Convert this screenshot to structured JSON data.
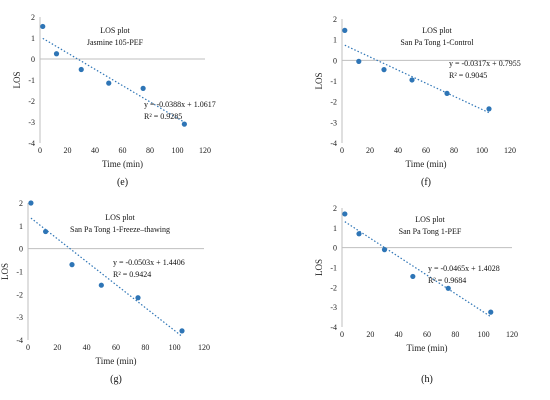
{
  "chart_data": [
    {
      "type": "scatter",
      "panel_label": "(e)",
      "title": "LOS plot",
      "subtitle": "Jasmine 105-PEF",
      "xlabel": "Time (min)",
      "ylabel": "LOS",
      "xlim": [
        0,
        120
      ],
      "ylim": [
        -4,
        2
      ],
      "xticks": [
        0,
        20,
        40,
        60,
        80,
        100,
        120
      ],
      "yticks": [
        -4,
        -3,
        -2,
        -1,
        0,
        1,
        2
      ],
      "points": {
        "x": [
          2,
          12,
          30,
          50,
          75,
          105
        ],
        "y": [
          1.55,
          0.25,
          -0.5,
          -1.15,
          -1.4,
          -3.1
        ]
      },
      "trendline": {
        "slope": -0.0388,
        "intercept": 1.0617
      },
      "equation": "y = -0.0388x + 1.0617",
      "r2": "R² = 0.9285"
    },
    {
      "type": "scatter",
      "panel_label": "(f)",
      "title": "LOS plot",
      "subtitle": "San Pa Tong 1-Control",
      "xlabel": "Time (min)",
      "ylabel": "LOS",
      "xlim": [
        0,
        120
      ],
      "ylim": [
        -4,
        2
      ],
      "xticks": [
        0,
        20,
        40,
        60,
        80,
        100,
        120
      ],
      "yticks": [
        -4,
        -3,
        -2,
        -1,
        0,
        1,
        2
      ],
      "points": {
        "x": [
          2,
          12,
          30,
          50,
          75,
          105
        ],
        "y": [
          1.45,
          -0.05,
          -0.45,
          -0.95,
          -1.6,
          -2.35
        ]
      },
      "trendline": {
        "slope": -0.0317,
        "intercept": 0.7955
      },
      "equation": "y = -0.0317x + 0.7955",
      "r2": "R² = 0.9045"
    },
    {
      "type": "scatter",
      "panel_label": "(g)",
      "title": "LOS plot",
      "subtitle": "San Pa Tong 1-Freeze–thawing",
      "xlabel": "Time (min)",
      "ylabel": "LOS",
      "xlim": [
        0,
        120
      ],
      "ylim": [
        -4,
        2
      ],
      "xticks": [
        0,
        20,
        40,
        60,
        80,
        100,
        120
      ],
      "yticks": [
        -4,
        -3,
        -2,
        -1,
        0,
        1,
        2
      ],
      "points": {
        "x": [
          2,
          12,
          30,
          50,
          75,
          105
        ],
        "y": [
          2.0,
          0.75,
          -0.7,
          -1.6,
          -2.15,
          -3.6
        ]
      },
      "trendline": {
        "slope": -0.0503,
        "intercept": 1.4406
      },
      "equation": "y = -0.0503x + 1.4406",
      "r2": "R² = 0.9424"
    },
    {
      "type": "scatter",
      "panel_label": "(h)",
      "title": "LOS plot",
      "subtitle": "San Pa Tong 1-PEF",
      "xlabel": "Time (min)",
      "ylabel": "LOS",
      "xlim": [
        0,
        120
      ],
      "ylim": [
        -4,
        2
      ],
      "xticks": [
        0,
        20,
        40,
        60,
        80,
        100,
        120
      ],
      "yticks": [
        -4,
        -3,
        -2,
        -1,
        0,
        1,
        2
      ],
      "points": {
        "x": [
          2,
          12,
          30,
          50,
          75,
          105
        ],
        "y": [
          1.7,
          0.7,
          -0.1,
          -1.45,
          -2.05,
          -3.25
        ]
      },
      "trendline": {
        "slope": -0.0465,
        "intercept": 1.4028
      },
      "equation": "y = -0.0465x + 1.4028",
      "r2": "R² = 0.9684"
    }
  ],
  "colors": {
    "marker": "#2e75b6",
    "trendline": "#2e75b6",
    "axis": "#bfbfbf",
    "text": "#111111"
  }
}
